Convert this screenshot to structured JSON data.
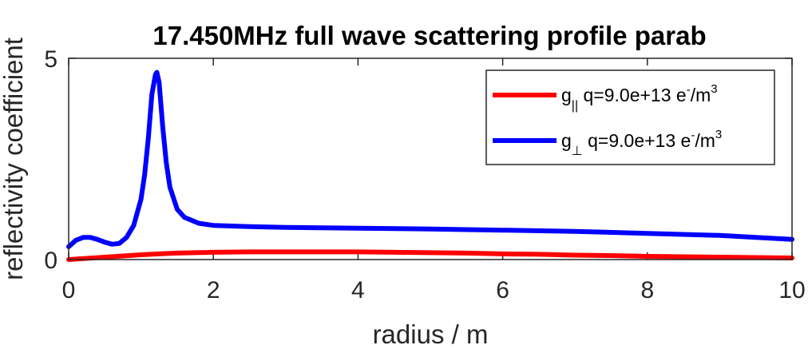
{
  "chart_data": {
    "type": "line",
    "title": "17.450MHz full wave scattering profile parab",
    "xlabel": "radius / m",
    "ylabel": "reflectivity coefficient",
    "xlim": [
      0,
      10
    ],
    "ylim": [
      0,
      5
    ],
    "xticks": [
      "0",
      "2",
      "4",
      "6",
      "8",
      "10"
    ],
    "yticks": [
      "0",
      "5"
    ],
    "grid": false,
    "legend_position": "top-right",
    "series": [
      {
        "legend_prefix": "g",
        "legend_subscript": "||",
        "legend_text": " q=9.0e+13 e",
        "legend_sup1": "-",
        "legend_unit": "/m",
        "legend_sup2": "3",
        "color": "#ff0000",
        "x": [
          0,
          0.25,
          0.5,
          0.75,
          1.0,
          1.25,
          1.5,
          2.0,
          2.5,
          3.0,
          3.5,
          4.0,
          4.5,
          5.0,
          5.5,
          6.0,
          6.5,
          7.0,
          7.5,
          8.0,
          8.5,
          9.0,
          9.5,
          10.0
        ],
        "y": [
          0.0,
          0.03,
          0.06,
          0.09,
          0.12,
          0.14,
          0.16,
          0.18,
          0.19,
          0.19,
          0.19,
          0.19,
          0.18,
          0.17,
          0.16,
          0.14,
          0.13,
          0.11,
          0.1,
          0.08,
          0.07,
          0.06,
          0.05,
          0.04
        ]
      },
      {
        "legend_prefix": "g",
        "legend_subscript": "⊥",
        "legend_text": " q=9.0e+13 e",
        "legend_sup1": "-",
        "legend_unit": "/m",
        "legend_sup2": "3",
        "color": "#0000ff",
        "x": [
          0,
          0.1,
          0.2,
          0.3,
          0.4,
          0.5,
          0.6,
          0.7,
          0.8,
          0.9,
          1.0,
          1.05,
          1.1,
          1.15,
          1.2,
          1.22,
          1.25,
          1.3,
          1.35,
          1.4,
          1.5,
          1.6,
          1.8,
          2.0,
          2.5,
          3.0,
          4.0,
          5.0,
          6.0,
          7.0,
          8.0,
          9.0,
          10.0
        ],
        "y": [
          0.32,
          0.48,
          0.55,
          0.55,
          0.5,
          0.43,
          0.38,
          0.4,
          0.55,
          0.85,
          1.5,
          2.1,
          3.0,
          4.1,
          4.6,
          4.65,
          4.4,
          3.3,
          2.4,
          1.8,
          1.25,
          1.05,
          0.9,
          0.85,
          0.82,
          0.8,
          0.78,
          0.76,
          0.73,
          0.7,
          0.65,
          0.6,
          0.5
        ]
      }
    ]
  }
}
